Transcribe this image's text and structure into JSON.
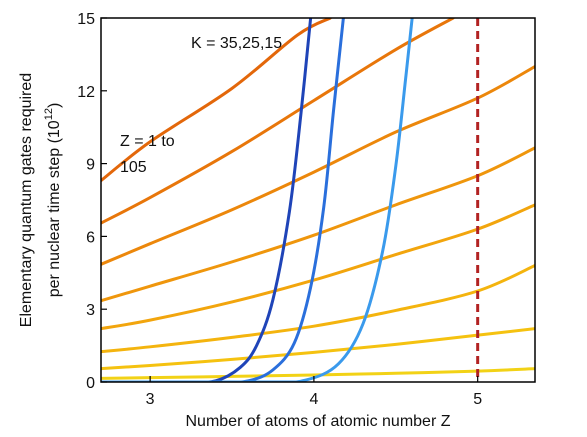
{
  "chart_data": {
    "type": "line",
    "xlabel": "Number of atoms of atomic number Z",
    "ylabel": {
      "line1": "Elementary quantum gates required",
      "line2_pre": "per nuclear time step (10",
      "line2_sup": "12",
      "line2_post": ")"
    },
    "xlim": [
      2.7,
      5.35
    ],
    "ylim": [
      0,
      15
    ],
    "xticks": [
      3,
      4,
      5
    ],
    "yticks": [
      0,
      3,
      6,
      9,
      12,
      15
    ],
    "grid": false,
    "annotations": {
      "z_text_line1": "Z = 1 to",
      "z_text_line2": "105",
      "k_text": "K = 35,25,15"
    },
    "vline": {
      "x": 5.0,
      "color": "#b22222"
    },
    "series_z": [
      {
        "color": "#f2d216",
        "x": [
          2.7,
          3.0,
          3.5,
          4.0,
          4.5,
          5.0,
          5.35
        ],
        "y": [
          0.15,
          0.18,
          0.23,
          0.29,
          0.36,
          0.45,
          0.55
        ]
      },
      {
        "color": "#f5c210",
        "x": [
          2.7,
          3.0,
          3.5,
          4.0,
          4.5,
          5.0,
          5.35
        ],
        "y": [
          0.55,
          0.68,
          0.93,
          1.22,
          1.55,
          1.93,
          2.2
        ]
      },
      {
        "color": "#f4b40e",
        "x": [
          2.7,
          3.0,
          3.5,
          4.0,
          4.5,
          5.0,
          5.35
        ],
        "y": [
          1.25,
          1.45,
          1.84,
          2.3,
          2.95,
          3.75,
          4.8
        ]
      },
      {
        "color": "#f2a50d",
        "x": [
          2.7,
          3.0,
          3.5,
          4.0,
          4.5,
          5.0,
          5.35
        ],
        "y": [
          2.2,
          2.55,
          3.3,
          4.2,
          5.25,
          6.3,
          7.3
        ]
      },
      {
        "color": "#ef960c",
        "x": [
          2.7,
          3.0,
          3.5,
          4.0,
          4.5,
          5.0,
          5.35
        ],
        "y": [
          3.35,
          3.95,
          4.95,
          6.05,
          7.3,
          8.5,
          9.65
        ]
      },
      {
        "color": "#ec870b",
        "x": [
          2.7,
          3.0,
          3.5,
          4.0,
          4.5,
          5.0,
          5.35
        ],
        "y": [
          4.85,
          5.7,
          7.1,
          8.65,
          10.3,
          11.7,
          13.0
        ]
      },
      {
        "color": "#e8760a",
        "x": [
          2.7,
          3.0,
          3.5,
          4.0,
          4.5,
          4.85
        ],
        "y": [
          6.55,
          7.6,
          9.5,
          11.6,
          13.7,
          15.0
        ]
      },
      {
        "color": "#e3670a",
        "x": [
          2.7,
          3.0,
          3.5,
          3.9,
          4.1
        ],
        "y": [
          8.3,
          9.9,
          12.1,
          14.3,
          15.0
        ]
      }
    ],
    "series_k": [
      {
        "color": "#1f44b8",
        "x": [
          2.7,
          3.2,
          3.4,
          3.55,
          3.65,
          3.75,
          3.85,
          3.92,
          3.98
        ],
        "y": [
          0.0,
          0.0,
          0.05,
          0.6,
          1.5,
          3.4,
          7.0,
          11.0,
          15.0
        ]
      },
      {
        "color": "#2a6fdc",
        "x": [
          2.7,
          3.4,
          3.6,
          3.75,
          3.88,
          3.98,
          4.06,
          4.12,
          4.18
        ],
        "y": [
          0.0,
          0.0,
          0.05,
          0.5,
          1.6,
          3.9,
          7.2,
          11.2,
          15.0
        ]
      },
      {
        "color": "#3a9aec",
        "x": [
          2.7,
          3.7,
          3.95,
          4.15,
          4.3,
          4.42,
          4.5,
          4.56,
          4.6
        ],
        "y": [
          0.0,
          0.0,
          0.08,
          0.75,
          2.4,
          5.4,
          8.9,
          12.5,
          15.0
        ]
      }
    ]
  }
}
